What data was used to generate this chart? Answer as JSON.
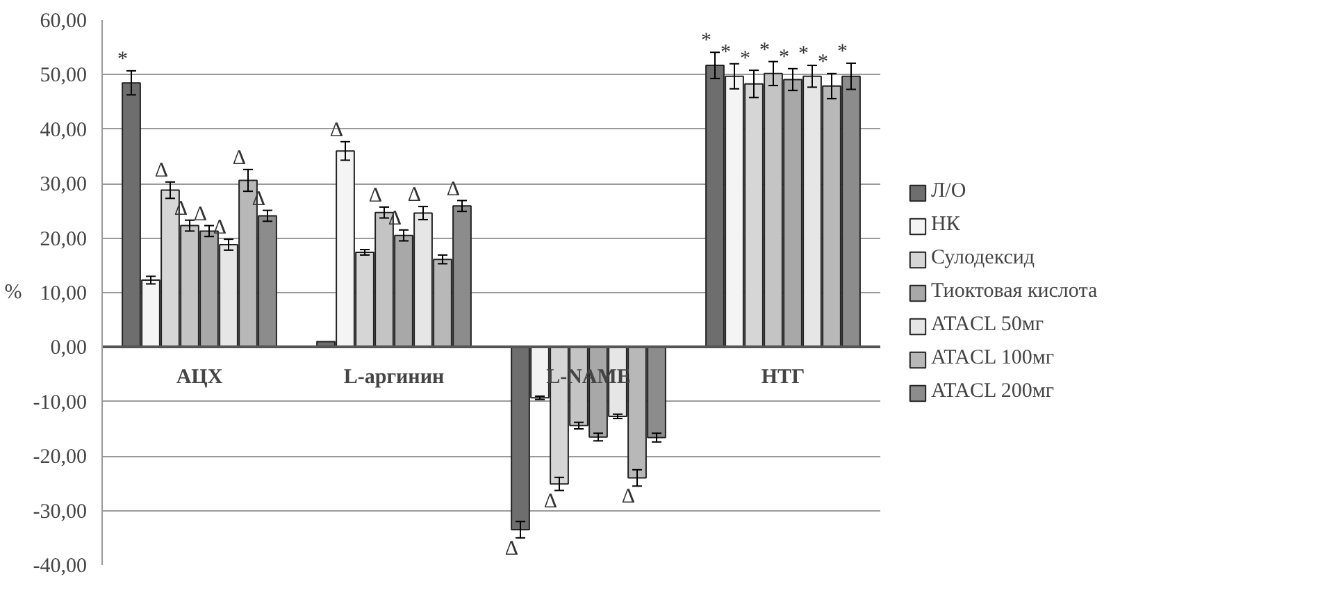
{
  "chart_data": {
    "type": "bar",
    "ylabel": "%",
    "categories": [
      "АЦХ",
      "L-аргинин",
      "L-NAME",
      "НТГ"
    ],
    "series": [
      {
        "name": "Л/О",
        "color": "#6e6e6e",
        "values": [
          48.5,
          1.0,
          -33.5,
          51.7
        ],
        "errors": [
          2.2,
          null,
          1.5,
          2.4
        ],
        "value_labels": [
          "*",
          null,
          "Δ",
          "*"
        ]
      },
      {
        "name": "НК",
        "color": "#f4f4f4",
        "values": [
          12.3,
          36.0,
          -9.3,
          49.7
        ],
        "errors": [
          0.7,
          1.7,
          0.3,
          2.3
        ],
        "value_labels": [
          null,
          "Δ",
          null,
          "*"
        ]
      },
      {
        "name": "Сулодексид",
        "color": "#d6d6d6",
        "values": [
          28.8,
          17.4,
          -25.1,
          48.3
        ],
        "errors": [
          1.5,
          0.5,
          1.2,
          2.5
        ],
        "value_labels": [
          "Δ",
          null,
          "Δ",
          "*"
        ]
      },
      {
        "name": null,
        "color": "#c4c4c4",
        "values": [
          22.3,
          24.7,
          -14.4,
          50.2
        ],
        "errors": [
          1.0,
          1.0,
          0.6,
          2.2
        ],
        "value_labels": [
          "Δ",
          "Δ",
          null,
          "*"
        ]
      },
      {
        "name": "Тиоктовая кислота",
        "color": "#a8a8a8",
        "values": [
          21.3,
          20.5,
          -16.5,
          49.1
        ],
        "errors": [
          1.0,
          1.0,
          0.7,
          2.0
        ],
        "value_labels": [
          "Δ",
          "Δ",
          null,
          "*"
        ]
      },
      {
        "name": "ATACL 50мг",
        "color": "#e6e6e6",
        "values": [
          18.8,
          24.6,
          -12.7,
          49.7
        ],
        "errors": [
          1.0,
          1.2,
          0.4,
          2.0
        ],
        "value_labels": [
          "Δ",
          "Δ",
          null,
          "*"
        ]
      },
      {
        "name": "ATACL 100мг",
        "color": "#b8b8b8",
        "values": [
          30.6,
          16.1,
          -24.0,
          47.9
        ],
        "errors": [
          2.0,
          0.8,
          1.5,
          2.3
        ],
        "value_labels": [
          "Δ",
          null,
          "Δ",
          "*"
        ]
      },
      {
        "name": "ATACL 200мг",
        "color": "#8c8c8c",
        "values": [
          24.1,
          25.9,
          -16.6,
          49.7
        ],
        "errors": [
          1.0,
          1.0,
          0.8,
          2.4
        ],
        "value_labels": [
          "Δ",
          "Δ",
          null,
          "*"
        ]
      }
    ],
    "ylim": [
      -40,
      60
    ],
    "yticks": [
      {
        "value": -40,
        "label": "-40,00"
      },
      {
        "value": -30,
        "label": "-30,00"
      },
      {
        "value": -20,
        "label": "-20,00"
      },
      {
        "value": -10,
        "label": "-10,00"
      },
      {
        "value": 0,
        "label": "0,00"
      },
      {
        "value": 10,
        "label": "10,00"
      },
      {
        "value": 20,
        "label": "20,00"
      },
      {
        "value": 30,
        "label": "30,00"
      },
      {
        "value": 40,
        "label": "40,00"
      },
      {
        "value": 50,
        "label": "50,00"
      },
      {
        "value": 60,
        "label": "60,00"
      }
    ],
    "grid": "y",
    "legend": "right"
  }
}
